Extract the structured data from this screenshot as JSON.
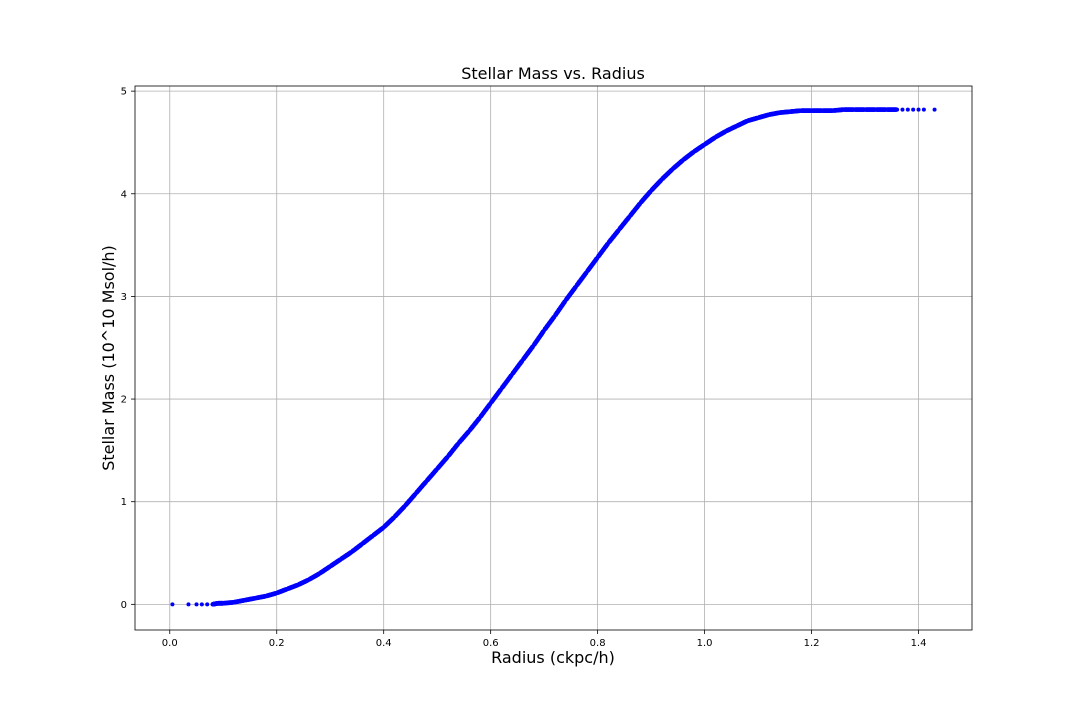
{
  "chart_data": {
    "type": "scatter",
    "title": "Stellar Mass vs. Radius",
    "xlabel": "Radius (ckpc/h)",
    "ylabel": "Stellar Mass (10^10 Msol/h)",
    "xlim": [
      -0.065,
      1.5
    ],
    "ylim": [
      -0.25,
      5.05
    ],
    "xticks": [
      0.0,
      0.2,
      0.4,
      0.6,
      0.8,
      1.0,
      1.2,
      1.4
    ],
    "xtick_labels": [
      "0.0",
      "0.2",
      "0.4",
      "0.6",
      "0.8",
      "1.0",
      "1.2",
      "1.4"
    ],
    "yticks": [
      0,
      1,
      2,
      3,
      4,
      5
    ],
    "ytick_labels": [
      "0",
      "1",
      "2",
      "3",
      "4",
      "5"
    ],
    "grid": true,
    "marker_color": "#0000ff",
    "series": [
      {
        "x": [
          0.005,
          0.035,
          0.05,
          0.06,
          0.07,
          0.08,
          0.09,
          0.1,
          0.12,
          0.14,
          0.16,
          0.18,
          0.2,
          0.22,
          0.24,
          0.26,
          0.28,
          0.3,
          0.32,
          0.34,
          0.36,
          0.38,
          0.4,
          0.42,
          0.44,
          0.46,
          0.48,
          0.5,
          0.52,
          0.54,
          0.56,
          0.58,
          0.6,
          0.62,
          0.64,
          0.66,
          0.68,
          0.7,
          0.72,
          0.74,
          0.76,
          0.78,
          0.8,
          0.82,
          0.84,
          0.86,
          0.88,
          0.9,
          0.92,
          0.94,
          0.96,
          0.98,
          1.0,
          1.02,
          1.04,
          1.06,
          1.08,
          1.1,
          1.12,
          1.14,
          1.16,
          1.18,
          1.2,
          1.22,
          1.24,
          1.26,
          1.28,
          1.3,
          1.32,
          1.34,
          1.36,
          1.37,
          1.38,
          1.39,
          1.4,
          1.41,
          1.43
        ],
        "y": [
          0.0,
          0.0,
          0.0,
          0.0,
          0.0,
          0.0,
          0.01,
          0.01,
          0.02,
          0.04,
          0.06,
          0.08,
          0.11,
          0.15,
          0.19,
          0.24,
          0.3,
          0.37,
          0.44,
          0.51,
          0.59,
          0.67,
          0.75,
          0.85,
          0.96,
          1.08,
          1.2,
          1.32,
          1.44,
          1.57,
          1.69,
          1.82,
          1.96,
          2.1,
          2.24,
          2.38,
          2.52,
          2.67,
          2.81,
          2.96,
          3.1,
          3.24,
          3.38,
          3.52,
          3.65,
          3.78,
          3.91,
          4.03,
          4.14,
          4.24,
          4.33,
          4.41,
          4.48,
          4.55,
          4.61,
          4.66,
          4.71,
          4.74,
          4.77,
          4.79,
          4.8,
          4.81,
          4.81,
          4.81,
          4.81,
          4.82,
          4.82,
          4.82,
          4.82,
          4.82,
          4.82,
          4.82,
          4.82,
          4.82,
          4.82,
          4.82,
          4.82
        ]
      }
    ]
  }
}
